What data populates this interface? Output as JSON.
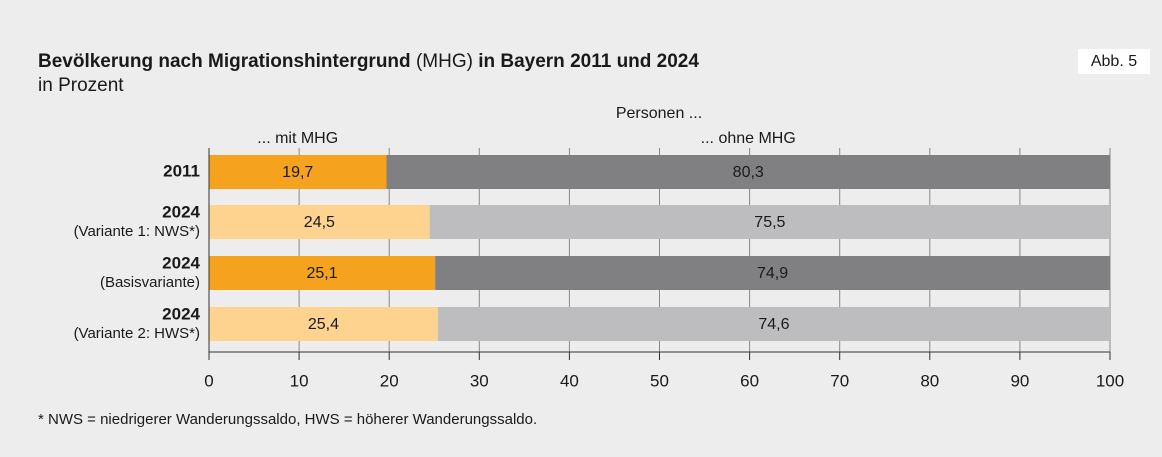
{
  "chart_data": {
    "type": "stacked-barh",
    "title": [
      "Bevölkerung nach Migrationshintergrund",
      "(MHG)",
      "in Bayern 2011 und 2024"
    ],
    "subtitle": "in Prozent",
    "badge": "Abb. 5",
    "legend_title": "Personen ...",
    "categories": [
      "2011",
      "2024",
      "2024",
      "2024"
    ],
    "category_notes": [
      null,
      "(Variante 1: NWS*)",
      "(Basisvariante)",
      "(Variante 2: HWS*)"
    ],
    "series": [
      {
        "name": "... mit MHG",
        "colors": [
          "#f5a21f",
          "#fdd38f",
          "#f5a21f",
          "#fdd38f"
        ],
        "values": [
          19.7,
          24.5,
          25.1,
          25.4
        ],
        "value_labels": [
          "19,7",
          "24,5",
          "25,1",
          "25,4"
        ]
      },
      {
        "name": "... ohne MHG",
        "colors": [
          "#808083",
          "#bdbdbf",
          "#808083",
          "#bdbdbf"
        ],
        "values": [
          80.3,
          75.5,
          74.9,
          74.6
        ],
        "value_labels": [
          "80,3",
          "75,5",
          "74,9",
          "74,6"
        ]
      }
    ],
    "xlim": [
      0,
      100
    ],
    "xticks": [
      0,
      10,
      20,
      30,
      40,
      50,
      60,
      70,
      80,
      90,
      100
    ],
    "grid": true,
    "footnote": "* NWS = niedrigerer Wanderungssaldo, HWS = höherer Wanderungssaldo."
  }
}
